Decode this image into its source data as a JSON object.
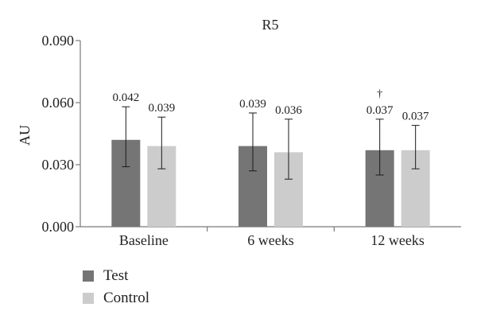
{
  "chart_data": {
    "type": "bar",
    "title": "R5",
    "xlabel": "",
    "ylabel": "AU",
    "ylim": [
      0,
      0.09
    ],
    "yticks": [
      "0.000",
      "0.030",
      "0.060",
      "0.090"
    ],
    "categories": [
      "Baseline",
      "6 weeks",
      "12 weeks"
    ],
    "series": [
      {
        "name": "Test",
        "color": "#757575",
        "values": [
          0.042,
          0.039,
          0.037
        ],
        "labels": [
          "0.042",
          "0.039",
          "0.037"
        ],
        "error_low": [
          0.029,
          0.027,
          0.025
        ],
        "error_high": [
          0.058,
          0.055,
          0.052
        ]
      },
      {
        "name": "Control",
        "color": "#cccccc",
        "values": [
          0.039,
          0.036,
          0.037
        ],
        "labels": [
          "0.039",
          "0.036",
          "0.037"
        ],
        "error_low": [
          0.028,
          0.023,
          0.028
        ],
        "error_high": [
          0.053,
          0.052,
          0.049
        ]
      }
    ],
    "annotations": [
      {
        "text": "†",
        "series": 0,
        "category": 2
      }
    ],
    "grid": false,
    "legend_position": "bottom-left"
  }
}
